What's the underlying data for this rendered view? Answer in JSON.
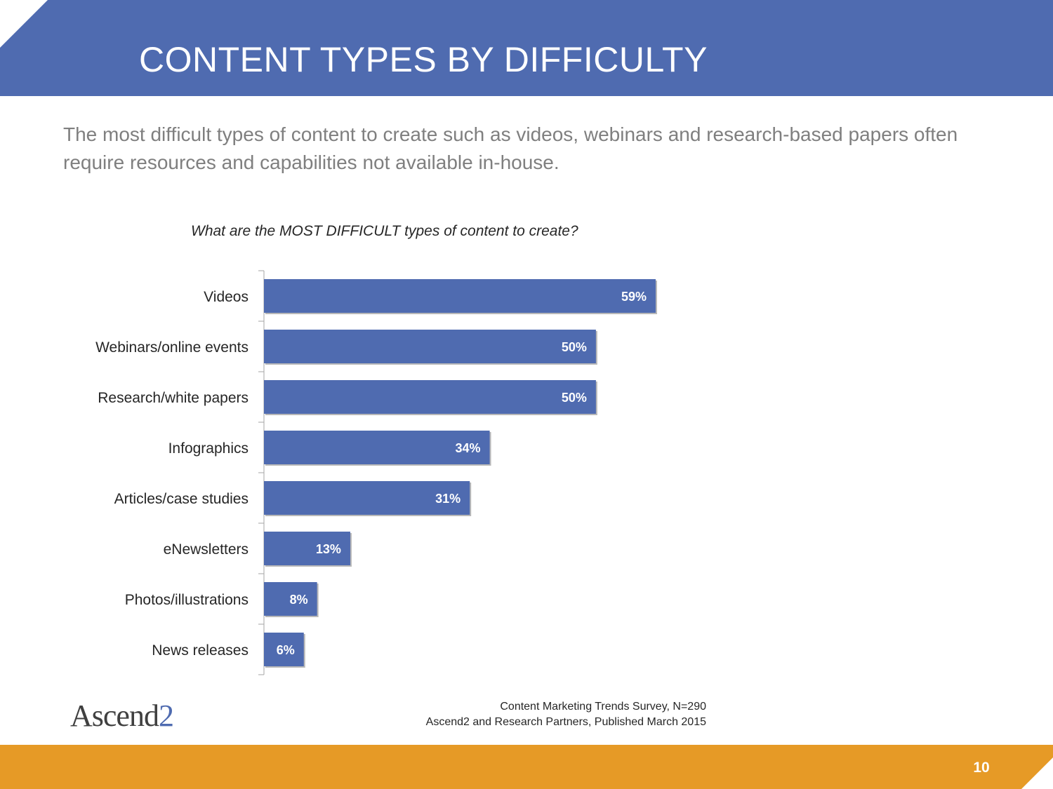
{
  "slide": {
    "title": "CONTENT TYPES BY DIFFICULTY",
    "subtitle": "The most difficult types of content to create such as videos, webinars and research-based papers often require resources and capabilities not available in-house.",
    "page_number": "10"
  },
  "footer": {
    "logo_main": "Ascend",
    "logo_accent": "2",
    "source_line1": "Content Marketing Trends Survey, N=290",
    "source_line2": "Ascend2 and Research Partners, Published March 2015"
  },
  "colors": {
    "header": "#4f6bb0",
    "bar": "#4f6bb0",
    "footer": "#e69a26"
  },
  "chart_data": {
    "type": "bar",
    "orientation": "horizontal",
    "title": "What are the MOST DIFFICULT types of content to create?",
    "categories": [
      "Videos",
      "Webinars/online events",
      "Research/white papers",
      "Infographics",
      "Articles/case studies",
      "eNewsletters",
      "Photos/illustrations",
      "News releases"
    ],
    "values": [
      59,
      50,
      50,
      34,
      31,
      13,
      8,
      6
    ],
    "value_labels": [
      "59%",
      "50%",
      "50%",
      "34%",
      "31%",
      "13%",
      "8%",
      "6%"
    ],
    "xlim": [
      0,
      100
    ],
    "grid": false,
    "legend": "none"
  }
}
